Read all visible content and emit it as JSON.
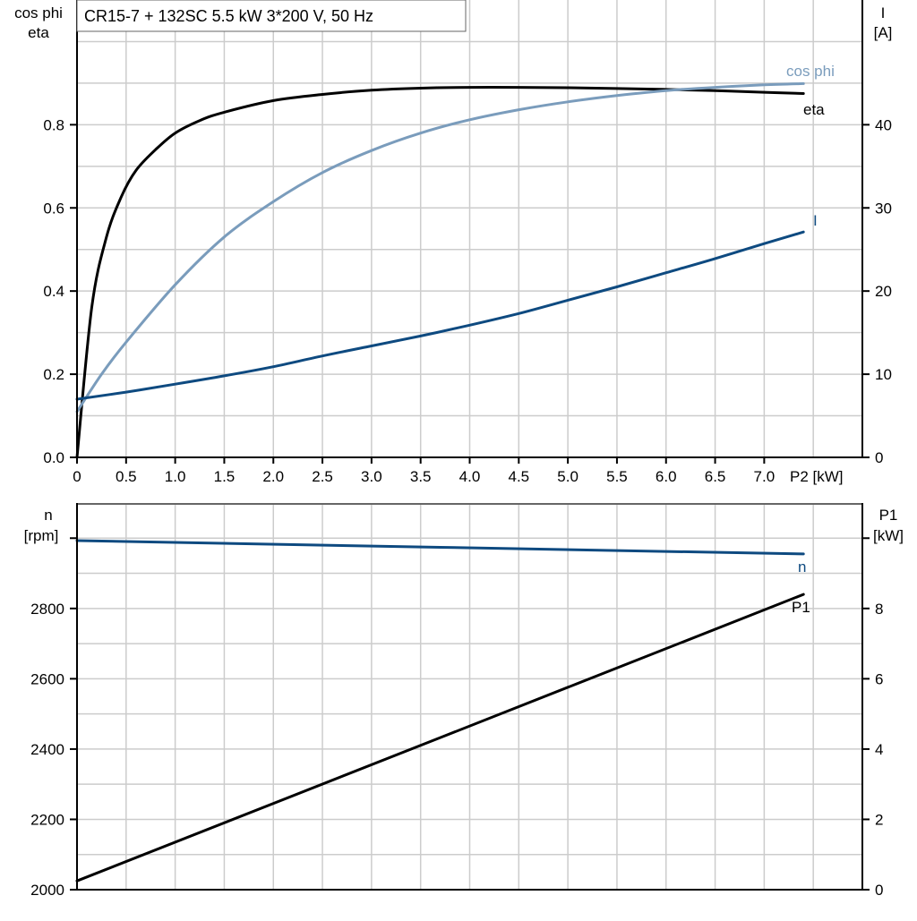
{
  "chart_data": [
    {
      "type": "line",
      "title": "CR15-7 + 132SC   5.5 kW   3*200 V, 50 Hz",
      "xlabel": "P2 [kW]",
      "xlim": [
        0,
        8
      ],
      "xticks": [
        "0",
        "0.5",
        "1.0",
        "1.5",
        "2.0",
        "2.5",
        "3.0",
        "3.5",
        "4.0",
        "4.5",
        "5.0",
        "5.5",
        "6.0",
        "6.5",
        "7.0"
      ],
      "ylabel_left": [
        "cos phi",
        "eta"
      ],
      "ylim_left": [
        0,
        1.1
      ],
      "yticks_left": [
        "0.0",
        "0.2",
        "0.4",
        "0.6",
        "0.8"
      ],
      "ylabel_right": [
        "I",
        "[A]"
      ],
      "ylim_right": [
        0,
        55
      ],
      "yticks_right": [
        "0",
        "10",
        "20",
        "30",
        "40"
      ],
      "grid": true,
      "series": [
        {
          "name": "eta",
          "axis": "left",
          "color": "#000000",
          "x": [
            0,
            0.15,
            0.3,
            0.45,
            0.6,
            0.8,
            1.0,
            1.25,
            1.5,
            2.0,
            2.5,
            3.0,
            3.5,
            4.0,
            4.5,
            5.0,
            5.5,
            6.0,
            6.5,
            7.0,
            7.4
          ],
          "y": [
            0,
            0.36,
            0.53,
            0.626,
            0.69,
            0.74,
            0.78,
            0.81,
            0.83,
            0.858,
            0.873,
            0.883,
            0.888,
            0.89,
            0.89,
            0.889,
            0.887,
            0.885,
            0.882,
            0.878,
            0.875
          ]
        },
        {
          "name": "cos phi",
          "axis": "left",
          "color": "#7a9cbc",
          "x": [
            0,
            0.25,
            0.5,
            1.0,
            1.5,
            2.0,
            2.5,
            3.0,
            3.5,
            4.0,
            4.5,
            5.0,
            5.5,
            6.0,
            6.5,
            7.0,
            7.4
          ],
          "y": [
            0.11,
            0.2,
            0.277,
            0.415,
            0.53,
            0.615,
            0.685,
            0.738,
            0.78,
            0.812,
            0.836,
            0.855,
            0.87,
            0.882,
            0.89,
            0.896,
            0.899
          ]
        },
        {
          "name": "I",
          "axis": "right",
          "color": "#0e4a80",
          "x": [
            0,
            0.5,
            1.0,
            1.5,
            2.0,
            2.5,
            3.0,
            3.5,
            4.0,
            4.5,
            5.0,
            5.5,
            6.0,
            6.5,
            7.0,
            7.4
          ],
          "y": [
            7.0,
            7.85,
            8.8,
            9.8,
            10.9,
            12.2,
            13.4,
            14.6,
            15.9,
            17.3,
            18.9,
            20.5,
            22.2,
            23.9,
            25.7,
            27.1
          ]
        }
      ]
    },
    {
      "type": "line",
      "xlim": [
        0,
        8
      ],
      "ylabel_left": [
        "n",
        "[rpm]"
      ],
      "ylim_left": [
        2000,
        3100
      ],
      "yticks_left": [
        "2000",
        "2200",
        "2400",
        "2600",
        "2800"
      ],
      "ylabel_right": [
        "P1",
        "[kW]"
      ],
      "ylim_right": [
        0,
        11
      ],
      "yticks_right": [
        "0",
        "2",
        "4",
        "6",
        "8"
      ],
      "grid": true,
      "series": [
        {
          "name": "n",
          "axis": "left",
          "color": "#0e4a80",
          "x": [
            0,
            7.4
          ],
          "y": [
            2993,
            2955
          ]
        },
        {
          "name": "P1",
          "axis": "right",
          "color": "#000000",
          "x": [
            0,
            7.4
          ],
          "y": [
            0.25,
            8.4
          ]
        }
      ]
    }
  ]
}
